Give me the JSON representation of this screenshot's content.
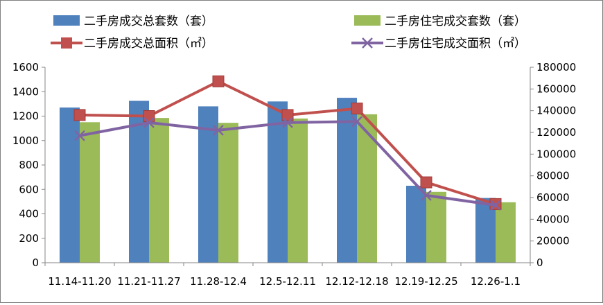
{
  "chart_data": {
    "type": "bar",
    "categories": [
      "11.14-11.20",
      "11.21-11.27",
      "11.28-12.4",
      "12.5-12.11",
      "12.12-12.18",
      "12.19-12.25",
      "12.26-1.1"
    ],
    "series": [
      {
        "name": "二手房成交总套数（套）",
        "type": "bar",
        "axis": "left",
        "color": "#4f81bd",
        "values": [
          1270,
          1325,
          1280,
          1320,
          1350,
          630,
          530
        ]
      },
      {
        "name": "二手房住宅成交套数（套）",
        "type": "bar",
        "axis": "left",
        "color": "#9bbb59",
        "values": [
          1150,
          1185,
          1145,
          1180,
          1215,
          580,
          495
        ]
      },
      {
        "name": "二手房成交总面积（㎡）",
        "type": "line",
        "marker": "square",
        "axis": "right",
        "color": "#c0504d",
        "values": [
          136000,
          135000,
          167000,
          136000,
          142000,
          74000,
          54000
        ]
      },
      {
        "name": "二手房住宅成交面积（㎡）",
        "type": "line",
        "marker": "x",
        "axis": "right",
        "color": "#8064a2",
        "values": [
          117000,
          129000,
          122000,
          129000,
          130000,
          62000,
          53000
        ]
      }
    ],
    "y_left": {
      "min": 0,
      "max": 1600,
      "ticks": [
        "0",
        "200",
        "400",
        "600",
        "800",
        "1000",
        "1200",
        "1400",
        "1600"
      ]
    },
    "y_right": {
      "min": 0,
      "max": 180000,
      "ticks": [
        "0",
        "20000",
        "40000",
        "60000",
        "80000",
        "100000",
        "120000",
        "140000",
        "160000",
        "180000"
      ]
    },
    "grid": false,
    "legend": "top"
  }
}
